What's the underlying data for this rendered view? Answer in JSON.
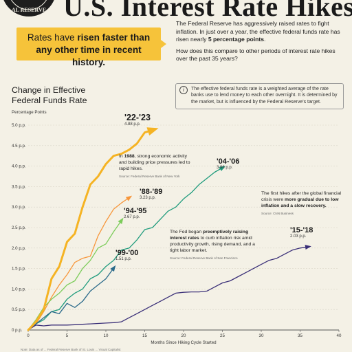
{
  "header": {
    "title": "U.S. Interest Rate Hikes",
    "seal_text": "AL RESERVE"
  },
  "callout": {
    "prefix": "Rates have ",
    "highlight": "risen faster than any other time in recent history."
  },
  "intro": {
    "para1_text": "The Federal Reserve has aggressively raised rates to fight inflation. In just over a year, the effective federal funds rate has risen nearly ",
    "para1_bold": "5 percentage points",
    "para1_end": ".",
    "question": "How does this compare to other periods of interest rate hikes over the past 35 years?"
  },
  "info": {
    "icon": "info-icon",
    "text": "The effective federal funds rate is a weighted average of the rate banks use to lend money to each other overnight. It is determined by the market, but is influenced by the Federal Reserve's target."
  },
  "notes": {
    "n1988": {
      "pre": "In ",
      "bold": "1988",
      "post": ", strong economic activity and building price pressures led to rapid hikes.",
      "source": "Source: Federal Reserve Bank of New York"
    },
    "n1999": {
      "pre": "The Fed began ",
      "bold": "preemptively raising interest rates",
      "post": " to curb inflation risk amid productivity growth, rising demand, and a tight labor market.",
      "source": "Source: Federal Reserve Bank of San Francisco"
    },
    "n2015": {
      "pre": "The first hikes after the global financial crisis were ",
      "bold": "more gradual due to low inflation and a slow recovery.",
      "post": "",
      "source": "Source: CNN Business"
    }
  },
  "footer": {
    "text": "Note: Data as of ... Federal Reserve Bank of St. Louis ... Visual Capitalist"
  },
  "chart_data": {
    "type": "line",
    "title": "Change in Effective Federal Funds Rate",
    "ylabel": "Percentage Points",
    "xlabel": "Months Since Hiking Cycle Started",
    "xlim": [
      0,
      40
    ],
    "ylim": [
      0,
      5
    ],
    "x_ticks": [
      0,
      5,
      10,
      15,
      20,
      25,
      30,
      35,
      40
    ],
    "y_ticks": [
      "0 p.p.",
      "0.5 p.p.",
      "1.0 p.p.",
      "1.5 p.p.",
      "2.0 p.p.",
      "2.5 p.p.",
      "3.0 p.p.",
      "3.5 p.p.",
      "4.0 p.p.",
      "4.5 p.p.",
      "5.0 p.p."
    ],
    "y_tick_values": [
      0,
      0.5,
      1,
      1.5,
      2,
      2.5,
      3,
      3.5,
      4,
      4.5,
      5
    ],
    "grid": true,
    "series": [
      {
        "name": "'22-'23",
        "value_label": "4.88 p.p.",
        "color": "#f5b323",
        "width": 3,
        "values": [
          [
            0,
            0
          ],
          [
            1,
            0.2
          ],
          [
            2,
            0.5
          ],
          [
            3,
            1.25
          ],
          [
            4,
            1.55
          ],
          [
            5,
            2.15
          ],
          [
            6,
            2.35
          ],
          [
            7,
            3.0
          ],
          [
            8,
            3.55
          ],
          [
            9,
            3.75
          ],
          [
            10,
            4.05
          ],
          [
            11,
            4.25
          ],
          [
            12,
            4.3
          ],
          [
            13,
            4.4
          ],
          [
            14,
            4.55
          ],
          [
            15,
            4.82
          ],
          [
            16,
            4.88
          ]
        ]
      },
      {
        "name": "'88-'89",
        "value_label": "3.23 p.p.",
        "color": "#f7963a",
        "width": 1.3,
        "values": [
          [
            0,
            0
          ],
          [
            1,
            0.15
          ],
          [
            2,
            0.45
          ],
          [
            3,
            0.8
          ],
          [
            4,
            1.1
          ],
          [
            5,
            1.35
          ],
          [
            6,
            1.65
          ],
          [
            7,
            1.75
          ],
          [
            8,
            1.8
          ],
          [
            9,
            2.3
          ],
          [
            10,
            2.65
          ],
          [
            11,
            2.95
          ],
          [
            12,
            3.1
          ],
          [
            13,
            3.23
          ]
        ]
      },
      {
        "name": "'94-'95",
        "value_label": "2.67 p.p.",
        "color": "#7ccc5a",
        "width": 1.3,
        "values": [
          [
            0,
            0
          ],
          [
            1,
            0.25
          ],
          [
            2,
            0.55
          ],
          [
            3,
            0.75
          ],
          [
            4,
            0.9
          ],
          [
            5,
            1.1
          ],
          [
            6,
            1.2
          ],
          [
            7,
            1.5
          ],
          [
            8,
            1.7
          ],
          [
            9,
            2.0
          ],
          [
            10,
            2.1
          ],
          [
            11,
            2.4
          ],
          [
            12,
            2.67
          ]
        ]
      },
      {
        "name": "'04-'06",
        "value_label": "3.96 p.p.",
        "color": "#1e9b7c",
        "width": 1.3,
        "values": [
          [
            0,
            0
          ],
          [
            1,
            0.15
          ],
          [
            2,
            0.25
          ],
          [
            3,
            0.45
          ],
          [
            4,
            0.5
          ],
          [
            5,
            0.75
          ],
          [
            6,
            0.9
          ],
          [
            7,
            1.0
          ],
          [
            8,
            1.25
          ],
          [
            9,
            1.35
          ],
          [
            10,
            1.55
          ],
          [
            11,
            1.7
          ],
          [
            12,
            1.95
          ],
          [
            13,
            2.0
          ],
          [
            14,
            2.2
          ],
          [
            15,
            2.45
          ],
          [
            16,
            2.5
          ],
          [
            17,
            2.7
          ],
          [
            18,
            2.9
          ],
          [
            19,
            3.0
          ],
          [
            20,
            3.2
          ],
          [
            21,
            3.35
          ],
          [
            22,
            3.55
          ],
          [
            23,
            3.7
          ],
          [
            24,
            3.85
          ],
          [
            25,
            3.96
          ]
        ]
      },
      {
        "name": "'99-'00",
        "value_label": "1.51 p.p.",
        "color": "#2a6a8a",
        "width": 1.3,
        "values": [
          [
            0,
            0
          ],
          [
            1,
            0.15
          ],
          [
            2,
            0.3
          ],
          [
            3,
            0.45
          ],
          [
            4,
            0.4
          ],
          [
            5,
            0.65
          ],
          [
            6,
            0.55
          ],
          [
            7,
            0.7
          ],
          [
            8,
            0.95
          ],
          [
            9,
            1.1
          ],
          [
            10,
            1.25
          ],
          [
            11,
            1.51
          ]
        ]
      },
      {
        "name": "'15-'18",
        "value_label": "2.03 p.p.",
        "color": "#3a2f78",
        "width": 1.3,
        "values": [
          [
            0,
            0
          ],
          [
            1,
            0.12
          ],
          [
            2,
            0.1
          ],
          [
            3,
            0.12
          ],
          [
            4,
            0.12
          ],
          [
            5,
            0.12
          ],
          [
            6,
            0.13
          ],
          [
            7,
            0.14
          ],
          [
            8,
            0.15
          ],
          [
            9,
            0.16
          ],
          [
            10,
            0.17
          ],
          [
            11,
            0.18
          ],
          [
            12,
            0.2
          ],
          [
            13,
            0.3
          ],
          [
            14,
            0.4
          ],
          [
            15,
            0.5
          ],
          [
            16,
            0.6
          ],
          [
            17,
            0.7
          ],
          [
            18,
            0.8
          ],
          [
            19,
            0.9
          ],
          [
            20,
            0.92
          ],
          [
            21,
            0.93
          ],
          [
            22,
            0.93
          ],
          [
            23,
            0.95
          ],
          [
            24,
            1.05
          ],
          [
            25,
            1.15
          ],
          [
            26,
            1.2
          ],
          [
            27,
            1.3
          ],
          [
            28,
            1.4
          ],
          [
            29,
            1.5
          ],
          [
            30,
            1.6
          ],
          [
            31,
            1.7
          ],
          [
            32,
            1.75
          ],
          [
            33,
            1.85
          ],
          [
            34,
            1.95
          ],
          [
            35,
            2.0
          ],
          [
            36,
            2.03
          ]
        ]
      }
    ]
  }
}
